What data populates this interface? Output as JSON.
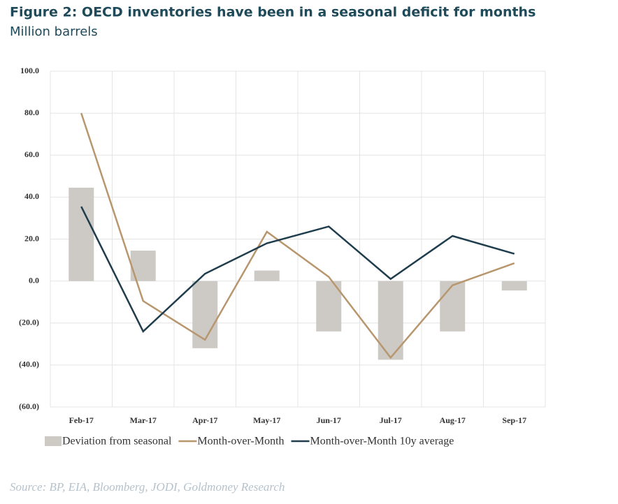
{
  "chart_data": {
    "type": "bar_line",
    "title": "Figure 2: OECD inventories have been in a seasonal deficit for months",
    "subtitle": "Million barrels",
    "source": "Source: BP, EIA, Bloomberg, JODI, Goldmoney Research",
    "categories": [
      "Feb-17",
      "Mar-17",
      "Apr-17",
      "May-17",
      "Jun-17",
      "Jul-17",
      "Aug-17",
      "Sep-17"
    ],
    "series": [
      {
        "name": "Deviation from seasonal",
        "type": "bar",
        "color": "#cdcac5",
        "values": [
          44.5,
          14.5,
          -32,
          5,
          -24,
          -37.5,
          -24,
          -4.5
        ]
      },
      {
        "name": "Month-over-Month",
        "type": "line",
        "color": "#b8966e",
        "values": [
          80,
          -9.5,
          -28,
          23.5,
          2,
          -36.5,
          -2,
          8.5
        ]
      },
      {
        "name": "Month-over-Month 10y average",
        "type": "line",
        "color": "#1f3d4c",
        "values": [
          35.5,
          -24,
          3.5,
          18,
          26,
          1,
          21.5,
          13
        ]
      }
    ],
    "ylim": [
      -60,
      100
    ],
    "yticks": [
      {
        "value": 100,
        "label": "100.0"
      },
      {
        "value": 80,
        "label": "80.0"
      },
      {
        "value": 60,
        "label": "60.0"
      },
      {
        "value": 40,
        "label": "40.0"
      },
      {
        "value": 20,
        "label": "20.0"
      },
      {
        "value": 0,
        "label": "0.0"
      },
      {
        "value": -20,
        "label": "(20.0)"
      },
      {
        "value": -40,
        "label": "(40.0)"
      },
      {
        "value": -60,
        "label": "(60.0)"
      }
    ],
    "negative_tick_color": "#c0161b",
    "grid": true
  }
}
